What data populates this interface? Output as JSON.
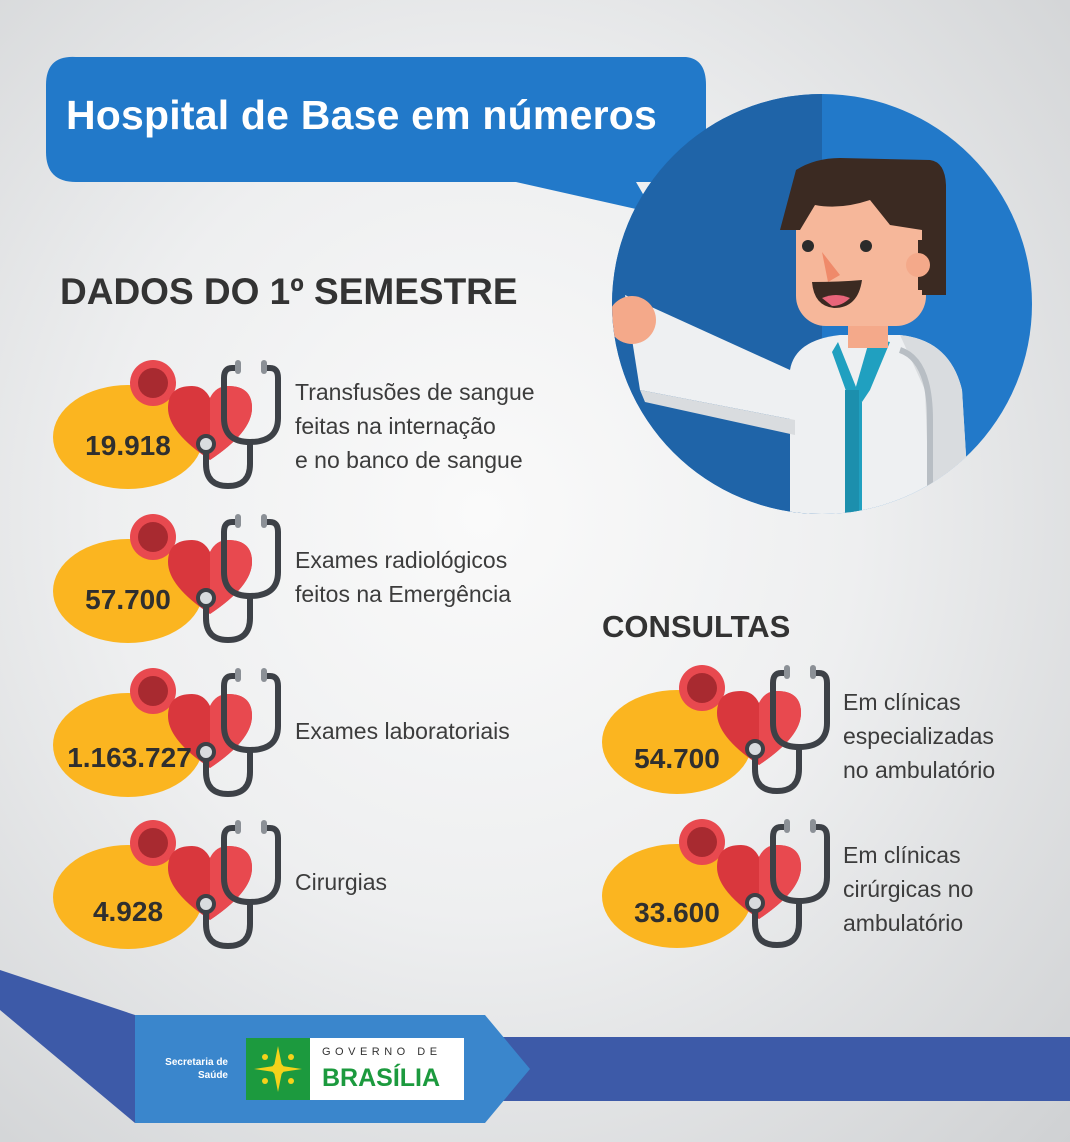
{
  "title": "Hospital de Base em números",
  "semester": {
    "heading": "DADOS DO 1º SEMESTRE",
    "items": [
      {
        "value": "19.918",
        "label": "Transfusões de sangue\nfeitas na internação\ne no banco de sangue"
      },
      {
        "value": "57.700",
        "label": "Exames radiológicos\nfeitos na Emergência"
      },
      {
        "value": "1.163.727",
        "label": "Exames laboratoriais"
      },
      {
        "value": "4.928",
        "label": "Cirurgias"
      }
    ]
  },
  "consultas": {
    "heading": "CONSULTAS",
    "items": [
      {
        "value": "54.700",
        "label": "Em clínicas\nespecializadas\nno ambulatório"
      },
      {
        "value": "33.600",
        "label": "Em clínicas\ncirúrgicas no\nambulatório"
      }
    ]
  },
  "footer": {
    "secretaria": "Secretaria de Saúde",
    "gov_top": "GOVERNO DE",
    "gov_bottom": "BRASÍLIA"
  },
  "colors": {
    "blue": "#2279c9",
    "dark_blue": "#1f64a8",
    "yellow": "#fbb520",
    "heart": "#e8494f",
    "green": "#1c9a3e"
  },
  "icons": [
    "heart-icon",
    "stethoscope-icon",
    "doctor-illustration",
    "brasilia-emblem-icon"
  ]
}
